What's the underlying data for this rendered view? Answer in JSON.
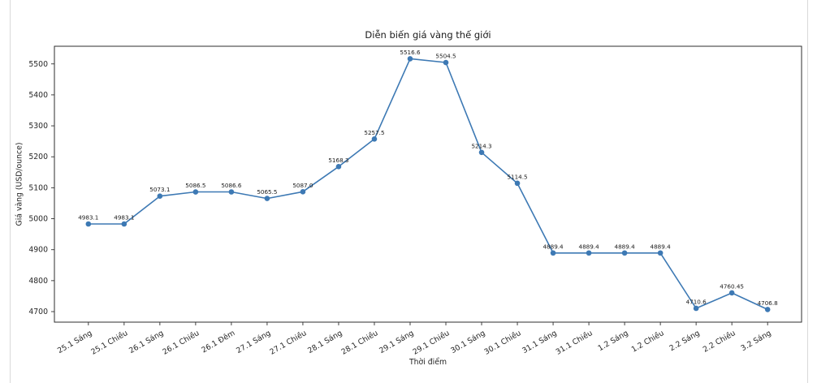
{
  "chart_data": {
    "type": "line",
    "title": "Diễn biến giá vàng thế giới",
    "xlabel": "Thời điểm",
    "ylabel": "Giá vàng (USD/ounce)",
    "categories": [
      "25.1 Sáng",
      "25.1 Chiều",
      "26.1 Sáng",
      "26.1 Chiều",
      "26.1 Đêm",
      "27.1 Sáng",
      "27.1 Chiều",
      "28.1 Sáng",
      "28.1 Chiều",
      "29.1 Sáng",
      "29.1 Chiều",
      "30.1 Sáng",
      "30.1 Chiều",
      "31.1 Sáng",
      "31.1 Chiều",
      "1.2 Sáng",
      "1.2 Chiều",
      "2.2 Sáng",
      "2.2 Chiều",
      "3.2 Sáng"
    ],
    "values": [
      4983.1,
      4983.1,
      5073.1,
      5086.5,
      5086.6,
      5065.5,
      5087.0,
      5168.3,
      5257.5,
      5516.6,
      5504.5,
      5214.3,
      5114.5,
      4889.4,
      4889.4,
      4889.4,
      4889.4,
      4710.6,
      4760.45,
      4706.8
    ],
    "point_labels": [
      "4983.1",
      "4983.1",
      "5073.1",
      "5086.5",
      "5086.6",
      "5065.5",
      "5087.0",
      "5168.3",
      "5257.5",
      "5516.6",
      "5504.5",
      "5214.3",
      "5114.5",
      "4889.4",
      "4889.4",
      "4889.4",
      "4889.4",
      "4710.6",
      "4760.45",
      "4706.8"
    ],
    "yticks": [
      4700,
      4800,
      4900,
      5000,
      5100,
      5200,
      5300,
      5400,
      5500
    ],
    "ylim": [
      4666,
      5557
    ],
    "x_tick_rotation_deg": 30,
    "grid": false,
    "legend": null,
    "line_color": "#3d79b4",
    "marker_color": "#3d79b4",
    "spine_color": "#2e2e2e",
    "tick_label_color": "#262626",
    "point_label_color": "#1a1a1a",
    "background_color": "#ffffff"
  }
}
